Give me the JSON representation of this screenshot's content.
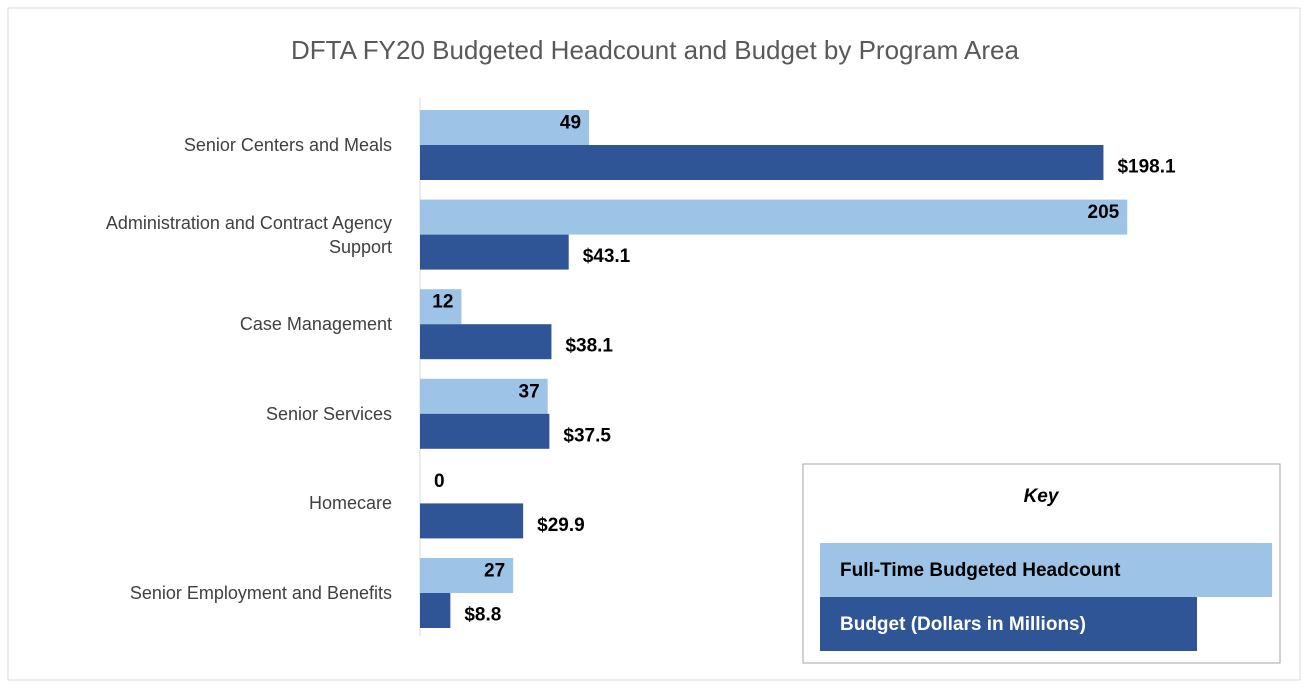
{
  "chart_data": {
    "type": "hbar",
    "title": "DFTA FY20 Budgeted Headcount and Budget by Program Area",
    "categories": [
      "Senior Centers and Meals",
      "Administration and Contract Agency Support",
      "Case Management",
      "Senior Services",
      "Homecare",
      "Senior Employment and Benefits"
    ],
    "series": [
      {
        "name": "Full-Time Budgeted Headcount",
        "color": "#9dc3e6",
        "values": [
          49,
          205,
          12,
          37,
          0,
          27
        ]
      },
      {
        "name": "Budget (Dollars in Millions)",
        "color": "#2f5597",
        "values": [
          198.1,
          43.1,
          38.1,
          37.5,
          29.9,
          8.8
        ],
        "value_labels": [
          "$198.1",
          "$43.1",
          "$38.1",
          "$37.5",
          "$29.9",
          "$8.8"
        ]
      }
    ],
    "xlim": [
      0,
      220
    ],
    "legend_title": "Key",
    "legend_position": "lower right"
  }
}
